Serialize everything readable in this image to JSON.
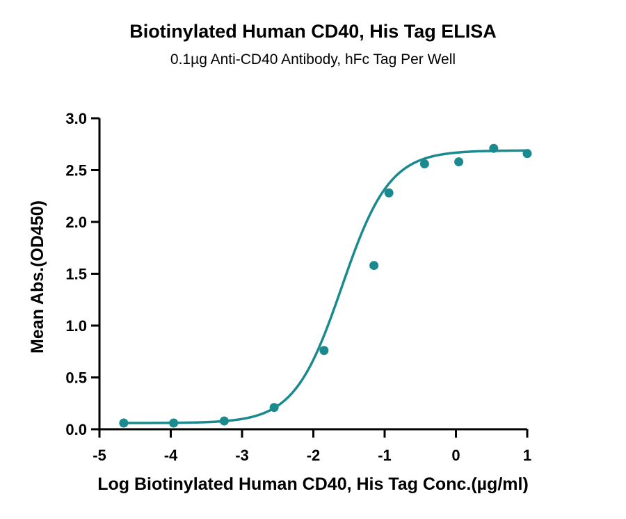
{
  "chart_data": {
    "type": "scatter",
    "title": "Biotinylated Human CD40, His Tag ELISA",
    "subtitle": "0.1µg Anti-CD40 Antibody, hFc Tag Per Well",
    "xlabel": "Log Biotinylated Human CD40, His Tag Conc.(µg/ml)",
    "ylabel": "Mean Abs.(OD450)",
    "xlim": [
      -5,
      1
    ],
    "ylim": [
      0,
      3.0
    ],
    "x_ticks": [
      "-5",
      "-4",
      "-3",
      "-2",
      "-1",
      "0",
      "1"
    ],
    "y_ticks": [
      "0.0",
      "0.5",
      "1.0",
      "1.5",
      "2.0",
      "2.5",
      "3.0"
    ],
    "grid": false,
    "legend": "none",
    "color": "#1a8a8e",
    "series": [
      {
        "points": [
          {
            "x": -4.66,
            "y": 0.06
          },
          {
            "x": -3.96,
            "y": 0.06
          },
          {
            "x": -3.25,
            "y": 0.08
          },
          {
            "x": -2.55,
            "y": 0.21
          },
          {
            "x": -1.85,
            "y": 0.76
          },
          {
            "x": -1.15,
            "y": 1.58
          },
          {
            "x": -0.94,
            "y": 2.28
          },
          {
            "x": -0.44,
            "y": 2.56
          },
          {
            "x": 0.04,
            "y": 2.58
          },
          {
            "x": 0.53,
            "y": 2.71
          },
          {
            "x": 1.0,
            "y": 2.66
          }
        ],
        "fit": {
          "model": "4PL",
          "bottom": 0.06,
          "top": 2.69,
          "log_ec50": -1.6,
          "hill": 1.3
        }
      }
    ]
  }
}
